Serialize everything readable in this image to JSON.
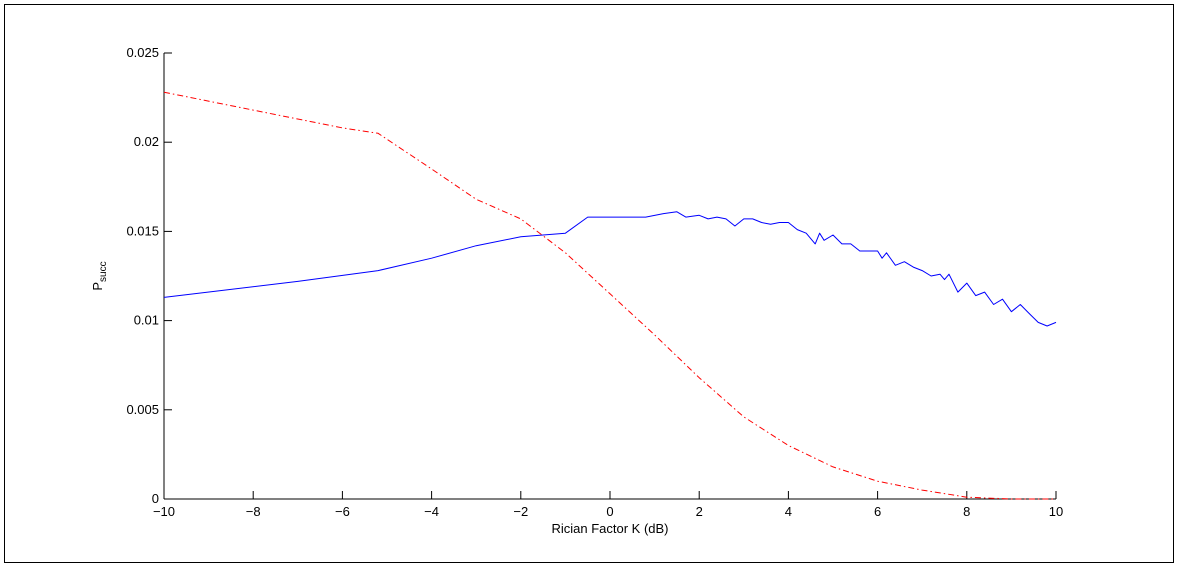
{
  "chart_data": {
    "type": "line",
    "title": "",
    "xlabel": "Rician Factor K (dB)",
    "ylabel": {
      "main": "P",
      "sub": "succ"
    },
    "xlim": [
      -10,
      10
    ],
    "ylim": [
      0,
      0.025
    ],
    "xticks": [
      -10,
      -8,
      -6,
      -4,
      -2,
      0,
      2,
      4,
      6,
      8,
      10
    ],
    "xtick_labels": [
      "−10",
      "−8",
      "−6",
      "−4",
      "−2",
      "0",
      "2",
      "4",
      "6",
      "8",
      "10"
    ],
    "yticks": [
      0,
      0.005,
      0.01,
      0.015,
      0.02,
      0.025
    ],
    "ytick_labels": [
      "0",
      "0.005",
      "0.01",
      "0.015",
      "0.02",
      "0.025"
    ],
    "grid": false,
    "legend": "none",
    "series": [
      {
        "style": "solid",
        "color": "#0000ff",
        "x": [
          -10,
          -7,
          -5.2,
          -4,
          -3,
          -2,
          -1,
          -0.5,
          0,
          0.8,
          1.2,
          1.5,
          1.7,
          2,
          2.2,
          2.4,
          2.6,
          2.8,
          3,
          3.2,
          3.4,
          3.6,
          3.8,
          4,
          4.2,
          4.4,
          4.6,
          4.7,
          4.8,
          5,
          5.2,
          5.4,
          5.6,
          5.8,
          6,
          6.1,
          6.2,
          6.4,
          6.6,
          6.8,
          7,
          7.2,
          7.4,
          7.5,
          7.6,
          7.8,
          8,
          8.2,
          8.4,
          8.6,
          8.8,
          9,
          9.2,
          9.4,
          9.6,
          9.8,
          10
        ],
        "y": [
          0.0113,
          0.0122,
          0.0128,
          0.0135,
          0.0142,
          0.0147,
          0.0149,
          0.0158,
          0.0158,
          0.0158,
          0.016,
          0.0161,
          0.0158,
          0.0159,
          0.0157,
          0.0158,
          0.0157,
          0.0153,
          0.0157,
          0.0157,
          0.0155,
          0.0154,
          0.0155,
          0.0155,
          0.0151,
          0.0149,
          0.0143,
          0.0149,
          0.0145,
          0.0148,
          0.0143,
          0.0143,
          0.0139,
          0.0139,
          0.0139,
          0.0135,
          0.0138,
          0.0131,
          0.0133,
          0.013,
          0.0128,
          0.0125,
          0.0126,
          0.0123,
          0.0126,
          0.0116,
          0.0121,
          0.0114,
          0.0116,
          0.0109,
          0.0112,
          0.0105,
          0.0109,
          0.0104,
          0.0099,
          0.0097,
          0.0099
        ]
      },
      {
        "style": "dash-dot",
        "color": "#ff0000",
        "x": [
          -10,
          -8,
          -6,
          -5.2,
          -4,
          -3,
          -2,
          -1,
          0,
          1,
          2,
          3,
          4,
          5,
          6,
          7,
          7.5,
          8,
          9,
          10
        ],
        "y": [
          0.0228,
          0.0218,
          0.0208,
          0.0205,
          0.0185,
          0.0168,
          0.0157,
          0.0138,
          0.0115,
          0.0092,
          0.0068,
          0.0046,
          0.003,
          0.0018,
          0.001,
          0.0005,
          0.0003,
          0.0001,
          0.0,
          0.0
        ]
      }
    ]
  }
}
